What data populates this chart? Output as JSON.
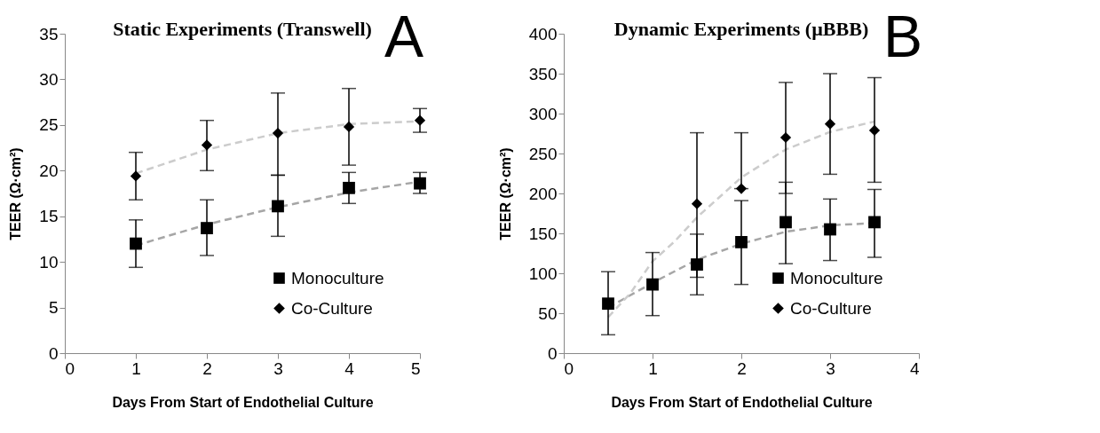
{
  "chart_data": [
    {
      "type": "scatter",
      "title": "Static Experiments (Transwell)",
      "xlabel": "Days From Start of Endothelial Culture",
      "ylabel": "TEER   (Ω·cm²)",
      "annotations": [
        "A"
      ],
      "xlim": [
        0,
        5
      ],
      "xticks": [
        0,
        1,
        2,
        3,
        4,
        5
      ],
      "ylim": [
        0,
        35
      ],
      "yticks": [
        0,
        5,
        10,
        15,
        20,
        25,
        30,
        35
      ],
      "grid": false,
      "legend": "bottom right",
      "series": [
        {
          "type": "line",
          "color": "#a6a6a6",
          "line_style": "dashed",
          "marker": "none",
          "x": [
            1,
            2,
            3,
            4,
            5
          ],
          "values": [
            11.8,
            14.1,
            16.0,
            17.6,
            18.8
          ]
        },
        {
          "type": "line",
          "color": "#cccccc",
          "line_style": "dashed",
          "marker": "none",
          "x": [
            1,
            2,
            3,
            4,
            5
          ],
          "values": [
            19.7,
            22.3,
            24.1,
            25.1,
            25.4
          ]
        },
        {
          "name": "Monoculture",
          "color": "#000000",
          "marker": "square",
          "x": [
            1,
            2,
            3,
            4,
            5
          ],
          "values": [
            12.0,
            13.7,
            16.1,
            18.1,
            18.6
          ],
          "errors": [
            [
              9.4,
              14.6
            ],
            [
              10.7,
              16.8
            ],
            [
              12.8,
              19.5
            ],
            [
              16.4,
              19.8
            ],
            [
              17.5,
              19.8
            ]
          ]
        },
        {
          "name": "Co-Culture",
          "color": "#000000",
          "marker": "diamond",
          "x": [
            1,
            2,
            3,
            4,
            5
          ],
          "values": [
            19.4,
            22.8,
            24.1,
            24.8,
            25.5
          ],
          "errors": [
            [
              16.8,
              22.0
            ],
            [
              20.0,
              25.5
            ],
            [
              19.5,
              28.5
            ],
            [
              20.6,
              29.0
            ],
            [
              24.2,
              26.8
            ]
          ]
        }
      ]
    },
    {
      "type": "scatter",
      "title": "Dynamic Experiments (µBBB)",
      "xlabel": "Days From Start of Endothelial Culture",
      "ylabel": "TEER   (Ω·cm²)",
      "annotations": [
        "B"
      ],
      "xlim": [
        0,
        4
      ],
      "xticks": [
        0,
        1,
        2,
        3,
        4
      ],
      "ylim": [
        0,
        400
      ],
      "yticks": [
        0,
        50,
        100,
        150,
        200,
        250,
        300,
        350,
        400
      ],
      "grid": false,
      "legend": "bottom right",
      "series": [
        {
          "type": "line",
          "color": "#a6a6a6",
          "line_style": "dashed",
          "marker": "none",
          "x": [
            0.5,
            1,
            1.5,
            2,
            2.5,
            3,
            3.5
          ],
          "values": [
            57,
            88,
            117,
            137,
            152,
            160,
            163
          ]
        },
        {
          "type": "line",
          "color": "#cccccc",
          "line_style": "dashed",
          "marker": "none",
          "x": [
            0.5,
            0.75,
            1,
            1.25,
            1.5,
            2,
            2.5,
            3,
            3.5
          ],
          "values": [
            45,
            75,
            115,
            140,
            170,
            220,
            255,
            277,
            290
          ]
        },
        {
          "name": "Monoculture",
          "color": "#000000",
          "marker": "square",
          "x": [
            0.5,
            1,
            1.5,
            2,
            2.5,
            3,
            3.5
          ],
          "values": [
            62,
            86,
            111,
            139,
            164,
            155,
            164
          ],
          "errors": [
            [
              23,
              102
            ],
            [
              47,
              126
            ],
            [
              73,
              149
            ],
            [
              86,
              191
            ],
            [
              112,
              214
            ],
            [
              116,
              193
            ],
            [
              120,
              205
            ]
          ]
        },
        {
          "name": "Co-Culture",
          "color": "#000000",
          "marker": "diamond",
          "x": [
            1.5,
            2,
            2.5,
            3,
            3.5
          ],
          "values": [
            187,
            206,
            270,
            287,
            279
          ],
          "errors": [
            [
              95,
              276
            ],
            [
              206,
              276
            ],
            [
              200,
              339
            ],
            [
              224,
              350
            ],
            [
              214,
              345
            ]
          ]
        }
      ]
    }
  ]
}
